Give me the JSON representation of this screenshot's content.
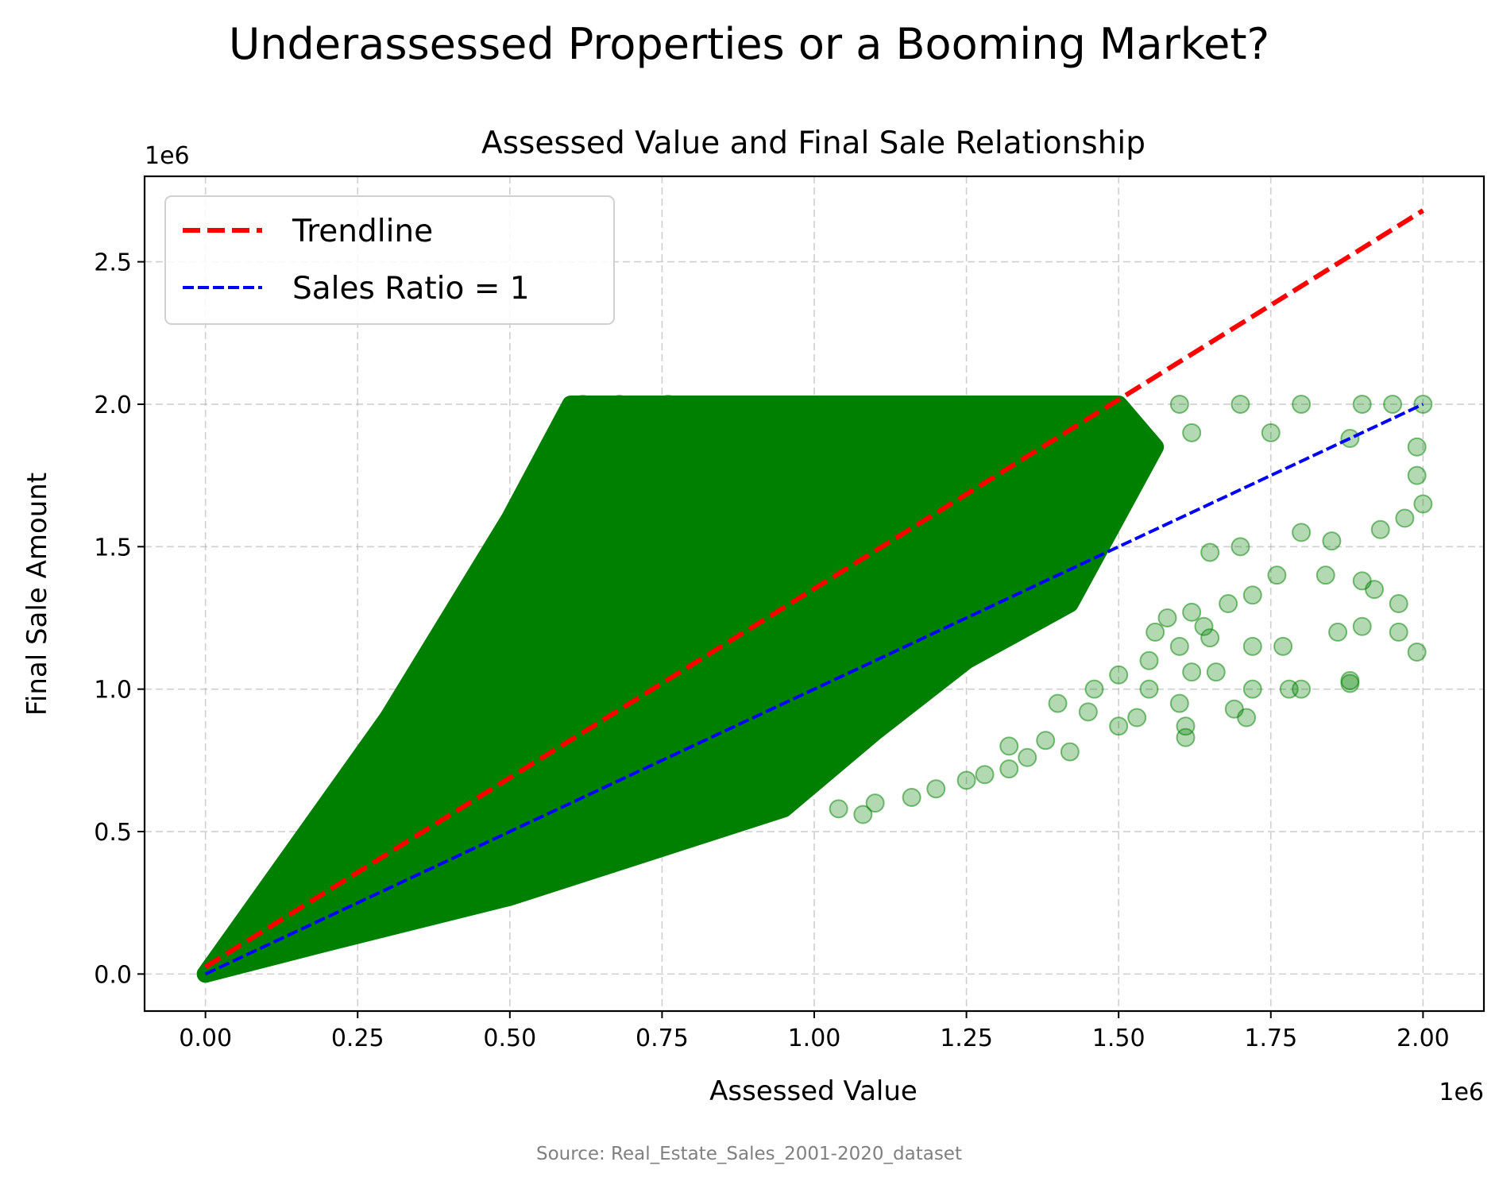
{
  "figure": {
    "suptitle": "Underassessed Properties or a Booming Market?",
    "source": "Source: Real_Estate_Sales_2001-2020_dataset"
  },
  "chart_data": {
    "type": "scatter",
    "title": "Assessed Value and Final Sale Relationship",
    "xlabel": "Assessed Value",
    "ylabel": "Final Sale Amount",
    "x_offset_label": "1e6",
    "y_offset_label": "1e6",
    "xlim": [
      -100000,
      2100000
    ],
    "ylim": [
      -130000,
      2800000
    ],
    "x_ticks": [
      0,
      250000,
      500000,
      750000,
      1000000,
      1250000,
      1500000,
      1750000,
      2000000
    ],
    "x_tick_labels": [
      "0.00",
      "0.25",
      "0.50",
      "0.75",
      "1.00",
      "1.25",
      "1.50",
      "1.75",
      "2.00"
    ],
    "y_ticks": [
      0,
      500000,
      1000000,
      1500000,
      2000000,
      2500000
    ],
    "y_tick_labels": [
      "0.0",
      "0.5",
      "1.0",
      "1.5",
      "2.0",
      "2.5"
    ],
    "grid": true,
    "legend_position": "top-left",
    "colors": {
      "scatter": "#008000",
      "trendline": "#ff0000",
      "sales_ratio": "#0000ff",
      "axes": "#000000"
    },
    "scatter": {
      "density_region": [
        [
          0,
          0
        ],
        [
          20000,
          60000
        ],
        [
          100000,
          300000
        ],
        [
          300000,
          900000
        ],
        [
          500000,
          1600000
        ],
        [
          600000,
          2000000
        ],
        [
          1500000,
          2000000
        ],
        [
          1560000,
          1850000
        ],
        [
          1420000,
          1300000
        ],
        [
          1250000,
          1100000
        ],
        [
          1100000,
          850000
        ],
        [
          950000,
          580000
        ],
        [
          500000,
          270000
        ],
        [
          200000,
          110000
        ],
        [
          0,
          0
        ]
      ],
      "outliers": [
        [
          620000,
          2000000
        ],
        [
          680000,
          2000000
        ],
        [
          760000,
          2000000
        ],
        [
          1600000,
          2000000
        ],
        [
          1700000,
          2000000
        ],
        [
          1800000,
          2000000
        ],
        [
          1900000,
          2000000
        ],
        [
          1950000,
          2000000
        ],
        [
          2000000,
          2000000
        ],
        [
          1620000,
          1900000
        ],
        [
          1750000,
          1900000
        ],
        [
          1880000,
          1880000
        ],
        [
          1990000,
          1850000
        ],
        [
          1990000,
          1750000
        ],
        [
          1970000,
          1600000
        ],
        [
          2000000,
          1650000
        ],
        [
          1930000,
          1560000
        ],
        [
          1850000,
          1520000
        ],
        [
          1800000,
          1550000
        ],
        [
          1700000,
          1500000
        ],
        [
          1650000,
          1480000
        ],
        [
          1760000,
          1400000
        ],
        [
          1840000,
          1400000
        ],
        [
          1900000,
          1380000
        ],
        [
          1920000,
          1350000
        ],
        [
          1960000,
          1300000
        ],
        [
          1720000,
          1330000
        ],
        [
          1680000,
          1300000
        ],
        [
          1620000,
          1270000
        ],
        [
          1580000,
          1250000
        ],
        [
          1900000,
          1220000
        ],
        [
          1960000,
          1200000
        ],
        [
          1860000,
          1200000
        ],
        [
          1640000,
          1220000
        ],
        [
          1560000,
          1200000
        ],
        [
          1650000,
          1180000
        ],
        [
          1720000,
          1150000
        ],
        [
          1770000,
          1150000
        ],
        [
          1600000,
          1150000
        ],
        [
          1990000,
          1130000
        ],
        [
          1550000,
          1100000
        ],
        [
          1620000,
          1060000
        ],
        [
          1660000,
          1060000
        ],
        [
          1500000,
          1050000
        ],
        [
          1880000,
          1030000
        ],
        [
          1880000,
          1020000
        ],
        [
          1780000,
          1000000
        ],
        [
          1800000,
          1000000
        ],
        [
          1720000,
          1000000
        ],
        [
          1550000,
          1000000
        ],
        [
          1460000,
          1000000
        ],
        [
          1600000,
          950000
        ],
        [
          1690000,
          930000
        ],
        [
          1710000,
          900000
        ],
        [
          1400000,
          950000
        ],
        [
          1530000,
          900000
        ],
        [
          1450000,
          920000
        ],
        [
          1500000,
          870000
        ],
        [
          1610000,
          870000
        ],
        [
          1610000,
          830000
        ],
        [
          1380000,
          820000
        ],
        [
          1420000,
          780000
        ],
        [
          1320000,
          800000
        ],
        [
          1350000,
          760000
        ],
        [
          1280000,
          700000
        ],
        [
          1250000,
          680000
        ],
        [
          1200000,
          650000
        ],
        [
          1320000,
          720000
        ],
        [
          1160000,
          620000
        ],
        [
          1100000,
          600000
        ],
        [
          1080000,
          560000
        ],
        [
          1040000,
          580000
        ]
      ]
    },
    "series": [
      {
        "name": "Trendline",
        "style": "dashed",
        "x": [
          0,
          2000000
        ],
        "y": [
          25000,
          2680000
        ]
      },
      {
        "name": "Sales Ratio = 1",
        "style": "dashed",
        "x": [
          0,
          2000000
        ],
        "y": [
          0,
          2000000
        ]
      }
    ]
  }
}
